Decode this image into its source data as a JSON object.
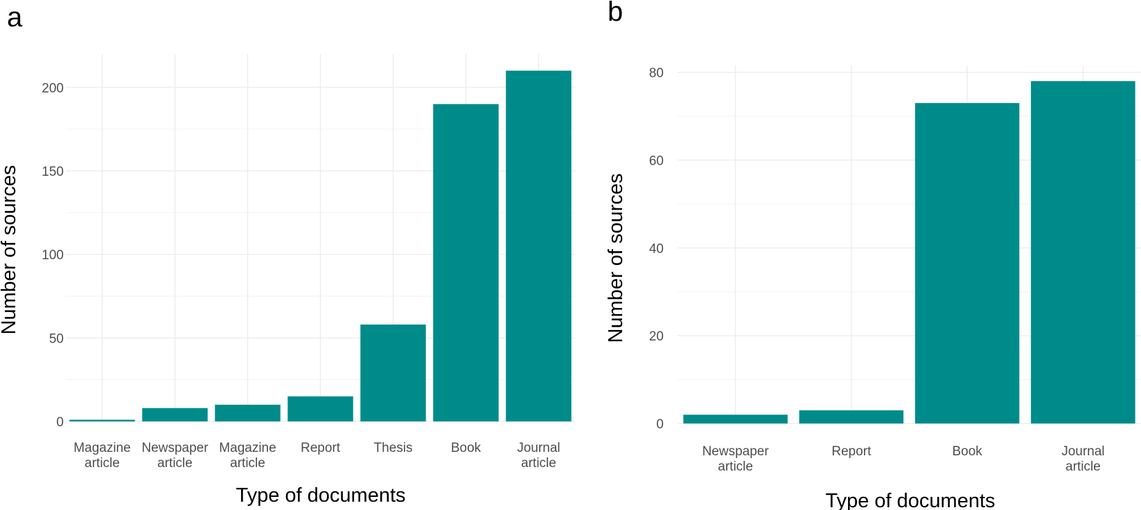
{
  "chart_data": [
    {
      "panel_label": "a",
      "type": "bar",
      "categories": [
        "Magazine\narticle",
        "Newspaper\narticle",
        "Magazine\narticle",
        "Report",
        "Thesis",
        "Book",
        "Journal\narticle"
      ],
      "values": [
        1,
        8,
        10,
        15,
        58,
        190,
        210
      ],
      "xlabel": "Type of documents",
      "ylabel": "Number of sources",
      "yticks": [
        0,
        50,
        100,
        150,
        200
      ],
      "ylim": [
        0,
        220
      ],
      "grid": true,
      "bar_color": "#008b8b"
    },
    {
      "panel_label": "b",
      "type": "bar",
      "categories": [
        "Newspaper\narticle",
        "Report",
        "Book",
        "Journal\narticle"
      ],
      "values": [
        2,
        3,
        73,
        78
      ],
      "xlabel": "Type of documents",
      "ylabel": "Number of sources",
      "yticks": [
        0,
        20,
        40,
        60,
        80
      ],
      "ylim": [
        0,
        81.5
      ],
      "grid": true,
      "bar_color": "#008b8b"
    }
  ]
}
